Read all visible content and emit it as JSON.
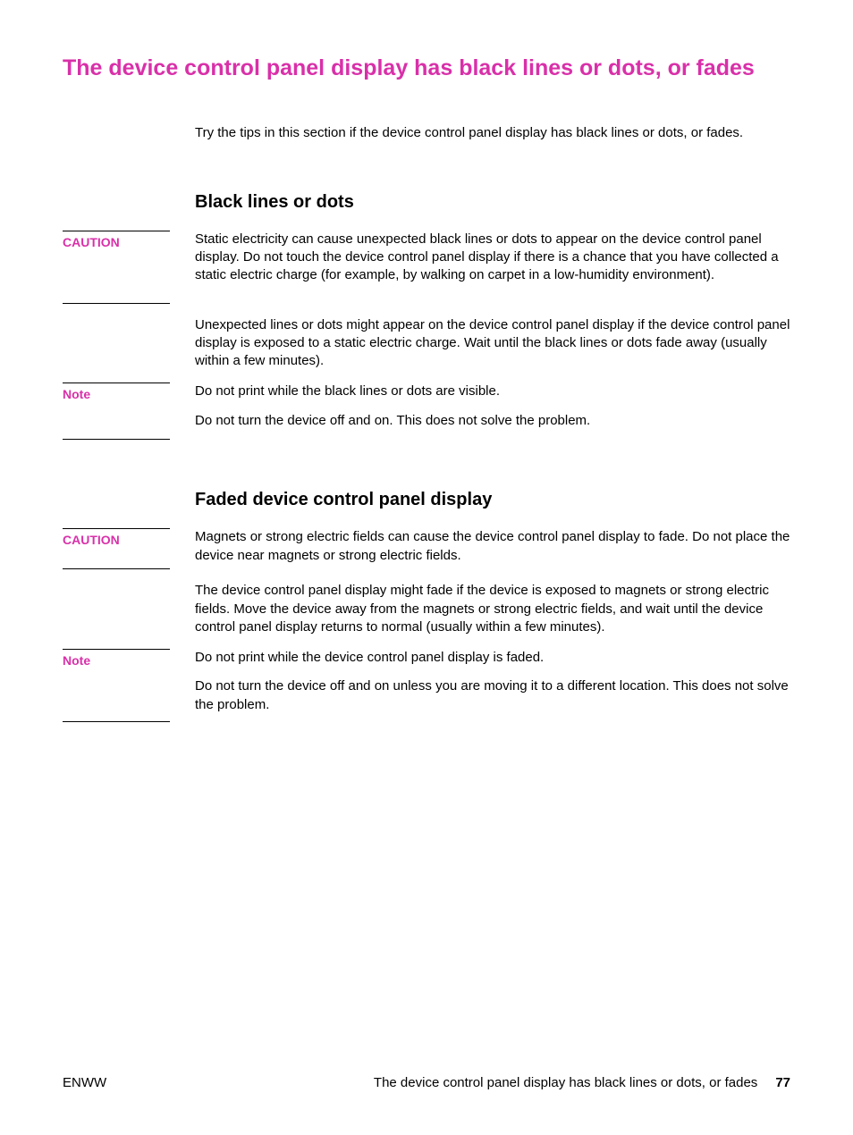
{
  "colors": {
    "accent": "#d930a9",
    "caution": "#d930a9",
    "note": "#d930a9",
    "text": "#000000",
    "background": "#ffffff",
    "rule": "#000000"
  },
  "typography": {
    "title_fontsize_pt": 19,
    "heading_fontsize_pt": 15,
    "body_fontsize_pt": 11,
    "label_fontsize_pt": 10,
    "title_weight": "bold",
    "heading_weight": "bold",
    "label_weight": "bold"
  },
  "page": {
    "title": "The device control panel display has black lines or dots, or fades",
    "intro": "Try the tips in this section if the device control panel display has black lines or dots, or fades."
  },
  "labels": {
    "caution": "CAUTION",
    "note": "Note"
  },
  "sections": [
    {
      "heading": "Black lines or dots",
      "blocks": [
        {
          "label_key": "caution",
          "label_size": "tall2",
          "paragraphs": [
            "Static electricity can cause unexpected black lines or dots to appear on the device control panel display. Do not touch the device control panel display if there is a chance that you have collected a static electric charge (for example, by walking on carpet in a low-humidity environment)."
          ]
        },
        {
          "label_key": null,
          "paragraphs": [
            "Unexpected lines or dots might appear on the device control panel display if the device control panel display is exposed to a static electric charge. Wait until the black lines or dots fade away (usually within a few minutes)."
          ]
        },
        {
          "label_key": "note",
          "label_size": "tall1",
          "paragraphs": [
            "Do not print while the black lines or dots are visible.",
            "Do not turn the device off and on. This does not solve the problem."
          ]
        }
      ]
    },
    {
      "heading": "Faded device control panel display",
      "blocks": [
        {
          "label_key": "caution",
          "label_size": "tallm",
          "paragraphs": [
            "Magnets or strong electric fields can cause the device control panel display to fade. Do not place the device near magnets or strong electric fields."
          ]
        },
        {
          "label_key": null,
          "paragraphs": [
            "The device control panel display might fade if the device is exposed to magnets or strong electric fields. Move the device away from the magnets or strong electric fields, and wait until the device control panel display returns to normal (usually within a few minutes)."
          ]
        },
        {
          "label_key": "note",
          "label_size": "tall2",
          "paragraphs": [
            "Do not print while the device control panel display is faded.",
            "Do not turn the device off and on unless you are moving it to a different location. This does not solve the problem."
          ]
        }
      ]
    }
  ],
  "footer": {
    "left": "ENWW",
    "right_text": "The device control panel display has black lines or dots, or fades",
    "page_number": "77"
  }
}
